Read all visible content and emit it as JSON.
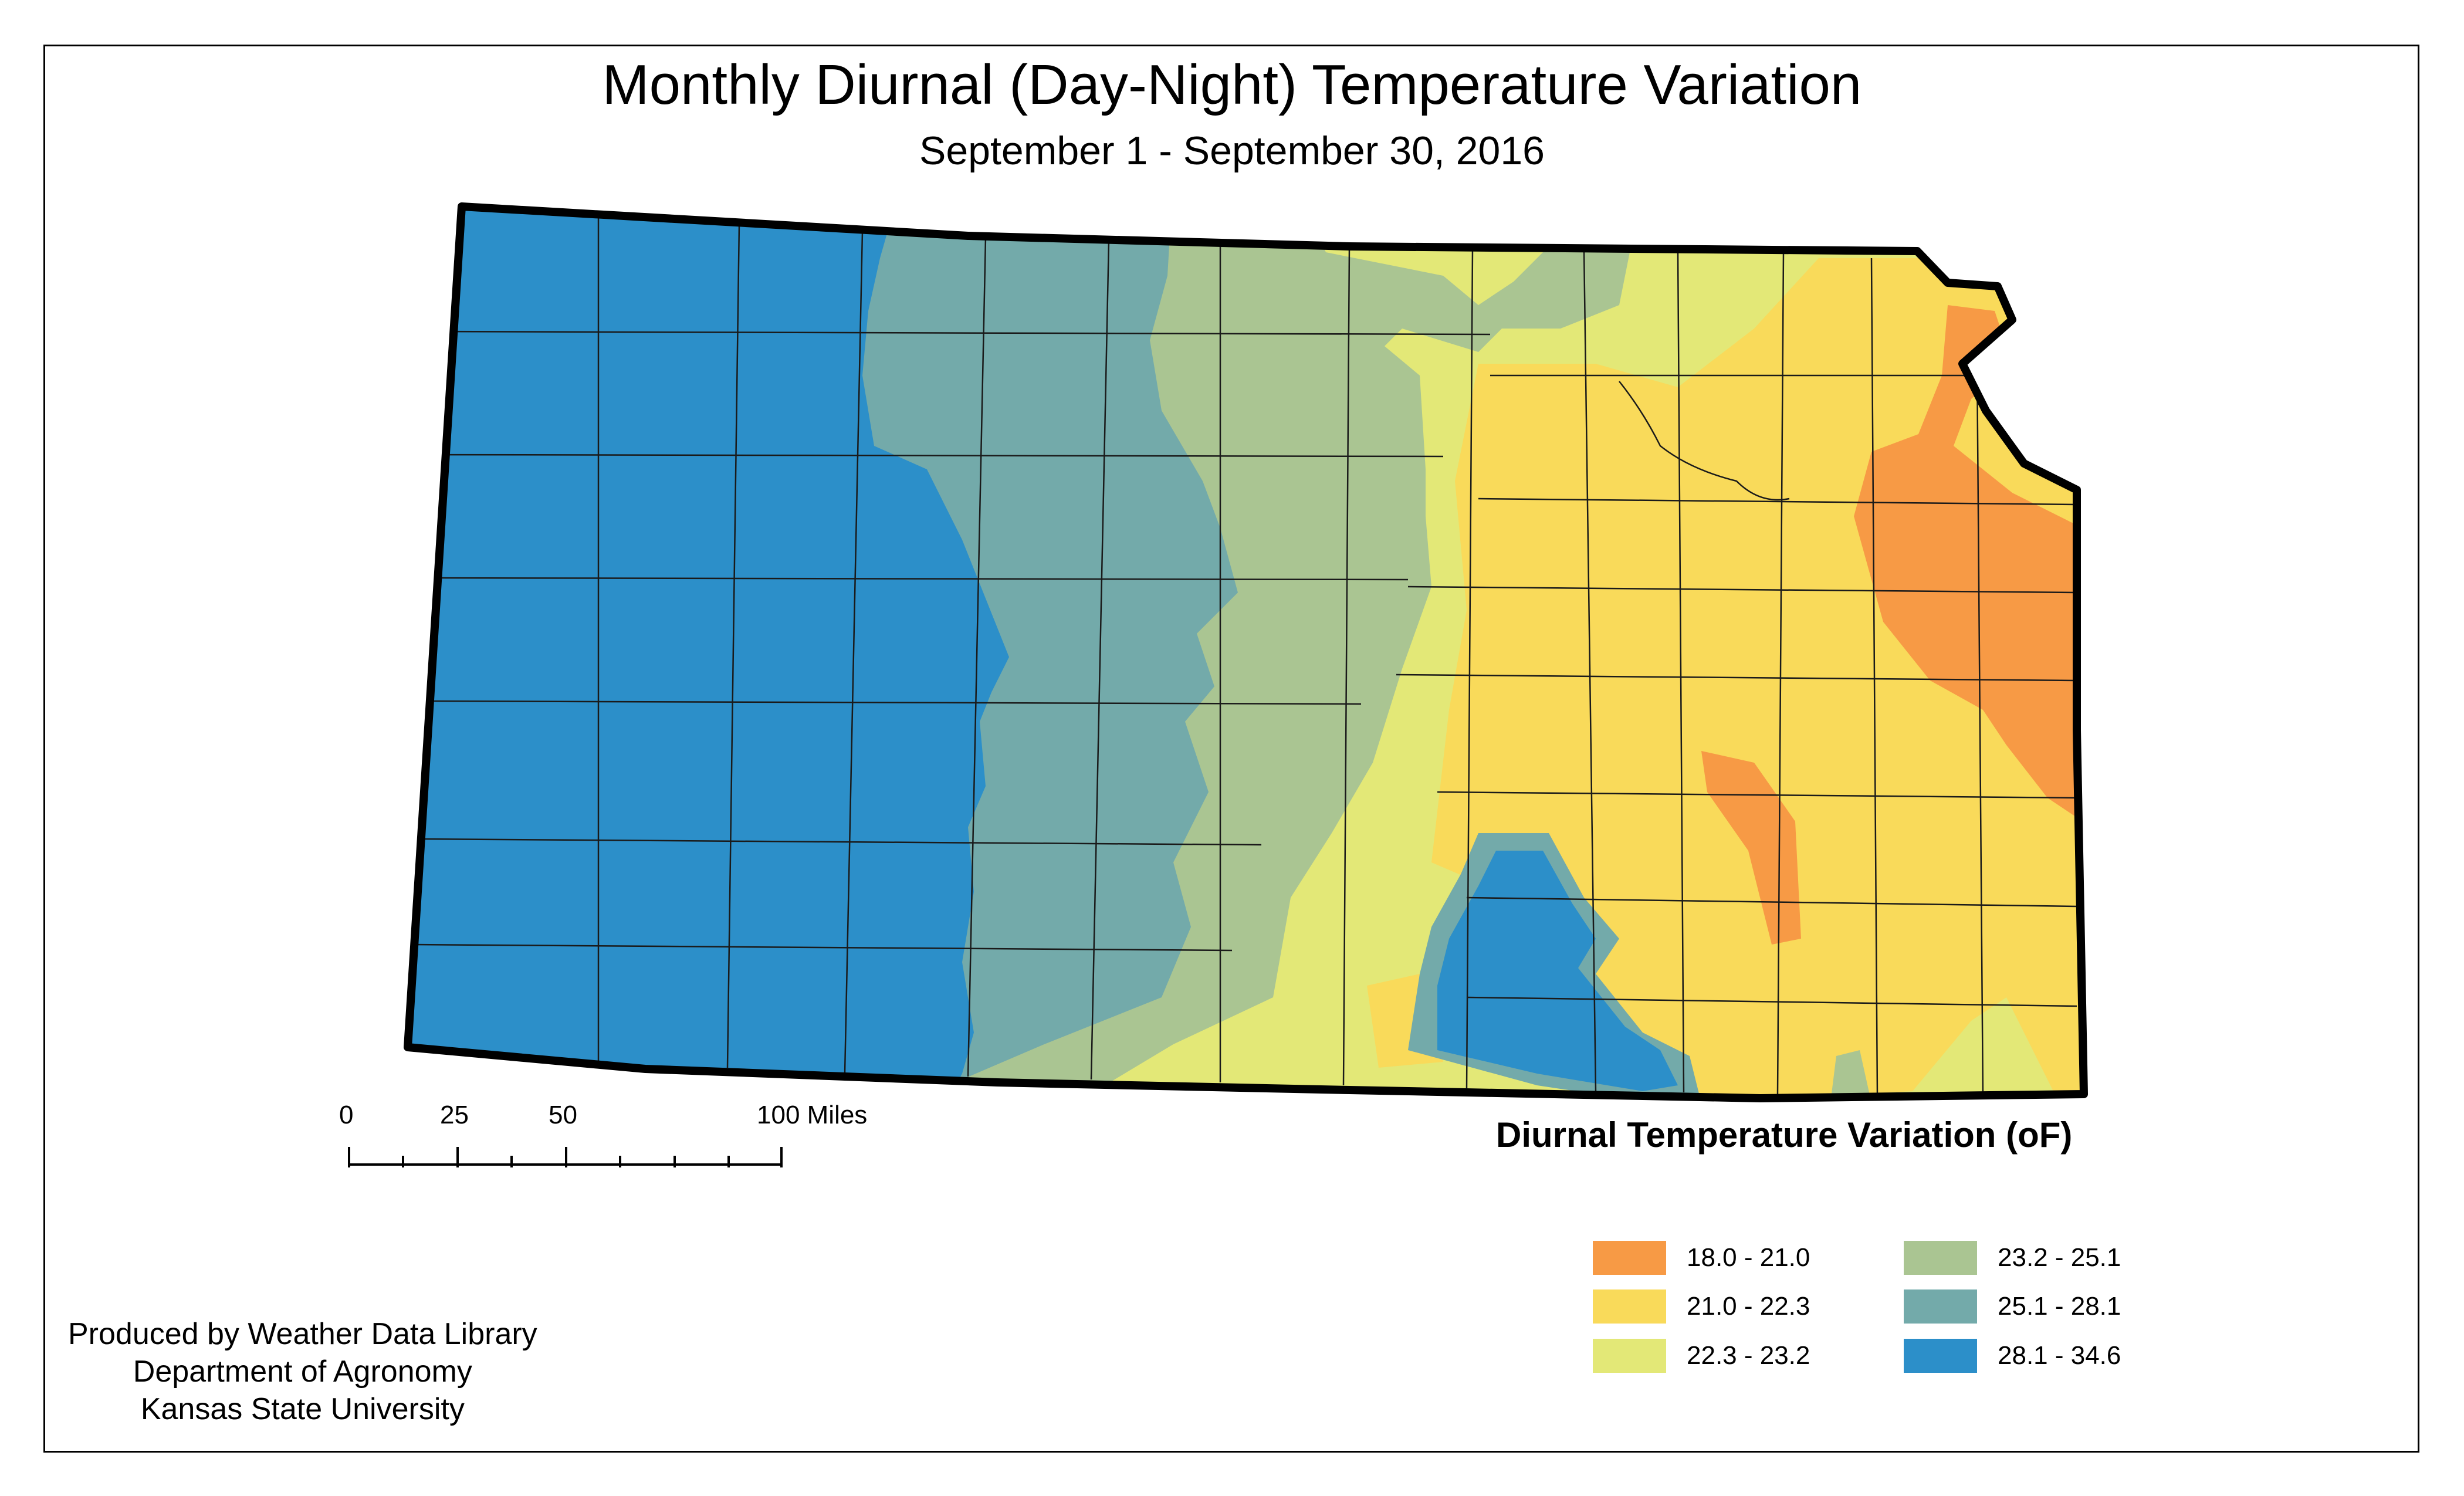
{
  "title": "Monthly Diurnal (Day-Night) Temperature Variation",
  "subtitle": "September 1 - September 30, 2016",
  "scale_bar": {
    "labels": [
      "0",
      "25",
      "50",
      "100 Miles"
    ]
  },
  "legend": {
    "title": "Diurnal Temperature Variation (oF)",
    "items": [
      {
        "label": "18.0 - 21.0",
        "color": "#F79A45"
      },
      {
        "label": "21.0 - 22.3",
        "color": "#F9DA5A"
      },
      {
        "label": "22.3 - 23.2",
        "color": "#E3E877"
      },
      {
        "label": "23.2 - 25.1",
        "color": "#AAC592"
      },
      {
        "label": "25.1 - 28.1",
        "color": "#73AAAA"
      },
      {
        "label": "28.1 - 34.6",
        "color": "#2C8FC9"
      }
    ]
  },
  "credits": {
    "line1": "Produced by Weather Data Library",
    "line2": "Department of Agronomy",
    "line3": "Kansas State University"
  }
}
